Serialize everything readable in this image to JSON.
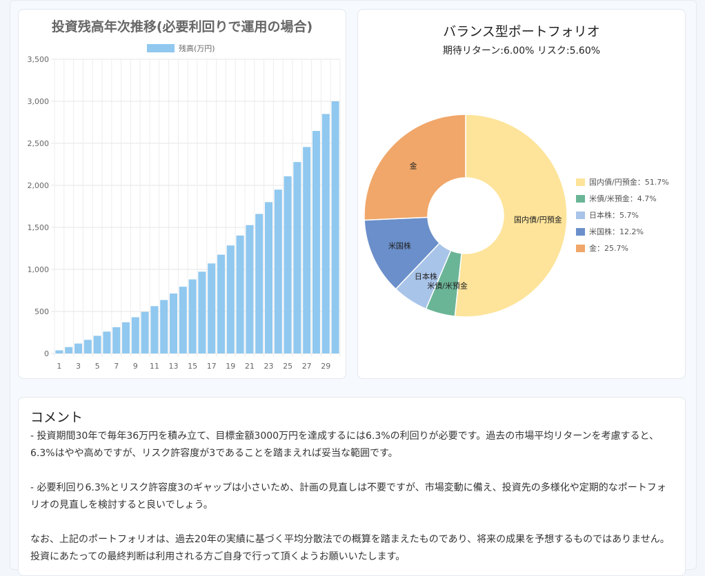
{
  "chart_data": [
    {
      "type": "bar",
      "title": "投資残高年次推移(必要利回りで運用の場合)",
      "series": [
        {
          "name": "残高(万円)",
          "color": "#90c8ef",
          "values": [
            37,
            76,
            118,
            162,
            210,
            260,
            313,
            371,
            431,
            495,
            563,
            636,
            713,
            794,
            881,
            973,
            1071,
            1175,
            1285,
            1403,
            1527,
            1660,
            1800,
            1949,
            2108,
            2277,
            2456,
            2647,
            2849,
            3000
          ]
        }
      ],
      "categories": [
        1,
        2,
        3,
        4,
        5,
        6,
        7,
        8,
        9,
        10,
        11,
        12,
        13,
        14,
        15,
        16,
        17,
        18,
        19,
        20,
        21,
        22,
        23,
        24,
        25,
        26,
        27,
        28,
        29,
        30
      ],
      "x_tick_labels": [
        "1",
        "3",
        "5",
        "7",
        "9",
        "11",
        "13",
        "15",
        "17",
        "19",
        "21",
        "23",
        "25",
        "27",
        "29"
      ],
      "y_tick_labels": [
        "0",
        "500",
        "1,000",
        "1,500",
        "2,000",
        "2,500",
        "3,000",
        "3,500"
      ],
      "ylim": [
        0,
        3500
      ],
      "grid": true,
      "legend_position": "top"
    },
    {
      "type": "pie",
      "title": "バランス型ポートフォリオ",
      "subtitle": "期待リターン:6.00% リスク:5.60%",
      "donut": true,
      "legend_position": "right",
      "slices": [
        {
          "label": "国内債/円預金",
          "legend": "国内債/円預金：51.7%",
          "value": 51.7,
          "color": "#fde49a"
        },
        {
          "label": "米債/米預金",
          "legend": "米債/米預金：4.7%",
          "value": 4.7,
          "color": "#6bb597"
        },
        {
          "label": "日本株",
          "legend": "日本株：5.7%",
          "value": 5.7,
          "color": "#a9c4e9"
        },
        {
          "label": "米国株",
          "legend": "米国株：12.2%",
          "value": 12.2,
          "color": "#6a8fca"
        },
        {
          "label": "金",
          "legend": "金：25.7%",
          "value": 25.7,
          "color": "#f0a769"
        }
      ]
    }
  ],
  "comment": {
    "title": "コメント",
    "paragraphs": [
      "- 投資期間30年で毎年36万円を積み立て、目標金額3000万円を達成するには6.3%の利回りが必要です。過去の市場平均リターンを考慮すると、6.3%はやや高めですが、リスク許容度が3であることを踏まえれば妥当な範囲です。",
      "- 必要利回り6.3%とリスク許容度3のギャップは小さいため、計画の見直しは不要ですが、市場変動に備え、投資先の多様化や定期的なポートフォリオの見直しを検討すると良いでしょう。",
      " なお、上記のポートフォリオは、過去20年の実績に基づく平均分散法での概算を踏まえたものであり、将来の成果を予想するものではありません。投資にあたっての最終判断は利用される方ご自身で行って頂くようお願いいたします。"
    ]
  }
}
